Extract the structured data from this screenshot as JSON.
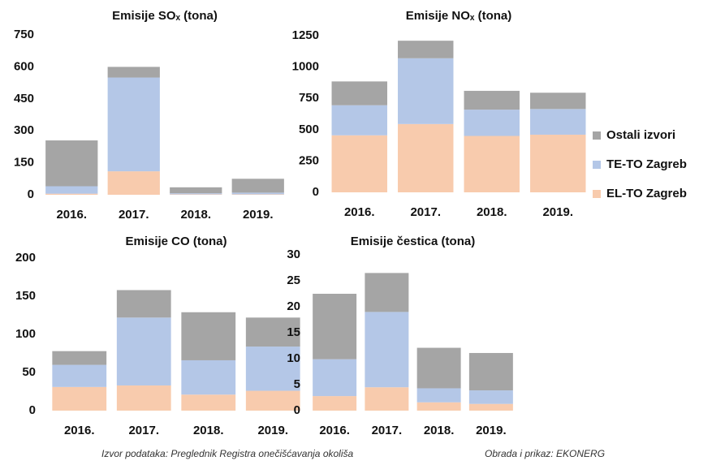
{
  "chart_data": [
    {
      "type": "bar",
      "stacked": true,
      "title": "Emisije SOₓ (tona)",
      "categories": [
        "2016.",
        "2017.",
        "2018.",
        "2019."
      ],
      "series": [
        {
          "name": "EL-TO Zagreb",
          "color": "#f8cbad",
          "values": [
            5,
            110,
            2,
            2
          ]
        },
        {
          "name": "TE-TO Zagreb",
          "color": "#b4c7e7",
          "values": [
            35,
            440,
            5,
            8
          ]
        },
        {
          "name": "Ostali izvori",
          "color": "#a5a5a5",
          "values": [
            215,
            50,
            28,
            65
          ]
        }
      ],
      "ylim": [
        0,
        750
      ],
      "yticks": [
        0,
        150,
        300,
        450,
        600,
        750
      ]
    },
    {
      "type": "bar",
      "stacked": true,
      "title": "Emisije NOₓ (tona)",
      "categories": [
        "2016.",
        "2017.",
        "2018.",
        "2019."
      ],
      "series": [
        {
          "name": "EL-TO Zagreb",
          "color": "#f8cbad",
          "values": [
            455,
            545,
            450,
            460
          ]
        },
        {
          "name": "TE-TO Zagreb",
          "color": "#b4c7e7",
          "values": [
            240,
            525,
            210,
            205
          ]
        },
        {
          "name": "Ostali izvori",
          "color": "#a5a5a5",
          "values": [
            190,
            140,
            150,
            130
          ]
        }
      ],
      "ylim": [
        0,
        1250
      ],
      "yticks": [
        0,
        250,
        500,
        750,
        1000,
        1250
      ]
    },
    {
      "type": "bar",
      "stacked": true,
      "title": "Emisije CO (tona)",
      "categories": [
        "2016.",
        "2017.",
        "2018.",
        "2019."
      ],
      "series": [
        {
          "name": "EL-TO Zagreb",
          "color": "#f8cbad",
          "values": [
            31,
            33,
            21,
            26
          ]
        },
        {
          "name": "TE-TO Zagreb",
          "color": "#b4c7e7",
          "values": [
            29,
            89,
            45,
            58
          ]
        },
        {
          "name": "Ostali izvori",
          "color": "#a5a5a5",
          "values": [
            18,
            36,
            63,
            38
          ]
        }
      ],
      "ylim": [
        0,
        200
      ],
      "yticks": [
        0,
        50,
        100,
        150,
        200
      ]
    },
    {
      "type": "bar",
      "stacked": true,
      "title": "Emisije čestica (tona)",
      "categories": [
        "2016.",
        "2017.",
        "2018.",
        "2019."
      ],
      "series": [
        {
          "name": "EL-TO Zagreb",
          "color": "#f8cbad",
          "values": [
            2.8,
            4.5,
            1.6,
            1.3
          ]
        },
        {
          "name": "TE-TO Zagreb",
          "color": "#b4c7e7",
          "values": [
            7.1,
            14.5,
            2.7,
            2.6
          ]
        },
        {
          "name": "Ostali izvori",
          "color": "#a5a5a5",
          "values": [
            12.6,
            7.5,
            7.8,
            7.2
          ]
        }
      ],
      "ylim": [
        0,
        30
      ],
      "yticks": [
        0,
        5,
        10,
        15,
        20,
        25,
        30
      ]
    }
  ],
  "footer": {
    "source": "Izvor podataka: Preglednik Registra onečišćavanja okoliša",
    "credit": "Obrada i prikaz: EKONERG"
  }
}
